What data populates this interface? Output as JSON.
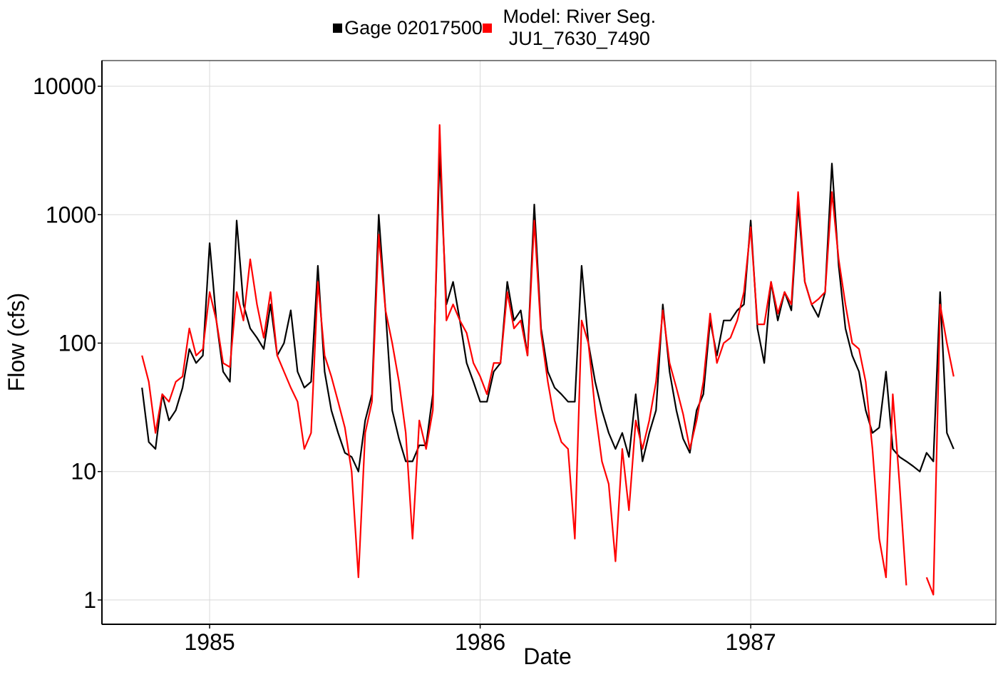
{
  "chart_data": {
    "type": "line",
    "xlabel": "Date",
    "ylabel": "Flow (cfs)",
    "yscale": "log",
    "grid": true,
    "legend": "top",
    "xlim": [
      1984.602,
      1987.906
    ],
    "xticks": [
      1985,
      1986,
      1987
    ],
    "ylim": [
      0.647,
      15849
    ],
    "yticks": [
      1,
      10,
      100,
      1000,
      10000
    ],
    "x": [
      1984.75,
      1984.775,
      1984.8,
      1984.825,
      1984.85,
      1984.875,
      1984.9,
      1984.925,
      1984.95,
      1984.975,
      1985,
      1985.025,
      1985.05,
      1985.075,
      1985.1,
      1985.125,
      1985.15,
      1985.175,
      1985.2,
      1985.225,
      1985.25,
      1985.275,
      1985.3,
      1985.325,
      1985.35,
      1985.375,
      1985.4,
      1985.425,
      1985.45,
      1985.475,
      1985.5,
      1985.525,
      1985.55,
      1985.575,
      1985.6,
      1985.625,
      1985.65,
      1985.675,
      1985.7,
      1985.725,
      1985.75,
      1985.775,
      1985.8,
      1985.825,
      1985.85,
      1985.875,
      1985.9,
      1985.925,
      1985.95,
      1985.975,
      1986,
      1986.025,
      1986.05,
      1986.075,
      1986.1,
      1986.125,
      1986.15,
      1986.175,
      1986.2,
      1986.225,
      1986.25,
      1986.275,
      1986.3,
      1986.325,
      1986.35,
      1986.375,
      1986.4,
      1986.425,
      1986.45,
      1986.475,
      1986.5,
      1986.525,
      1986.55,
      1986.575,
      1986.6,
      1986.625,
      1986.65,
      1986.675,
      1986.7,
      1986.725,
      1986.75,
      1986.775,
      1986.8,
      1986.825,
      1986.85,
      1986.875,
      1986.9,
      1986.925,
      1986.95,
      1986.975,
      1987,
      1987.025,
      1987.05,
      1987.075,
      1987.1,
      1987.125,
      1987.15,
      1987.175,
      1987.2,
      1987.225,
      1987.25,
      1987.275,
      1987.3,
      1987.325,
      1987.35,
      1987.375,
      1987.4,
      1987.425,
      1987.45,
      1987.475,
      1987.5,
      1987.525,
      1987.55,
      1987.575,
      1987.6,
      1987.625,
      1987.65,
      1987.675,
      1987.7,
      1987.725,
      1987.75
    ],
    "series": [
      {
        "name": "Gage 02017500",
        "color": "#000000",
        "values": [
          45,
          17,
          15,
          40,
          25,
          30,
          45,
          90,
          70,
          80,
          600,
          150,
          60,
          50,
          900,
          200,
          130,
          110,
          90,
          200,
          80,
          100,
          180,
          60,
          45,
          50,
          400,
          60,
          30,
          20,
          14,
          13,
          10,
          25,
          40,
          1000,
          180,
          30,
          18,
          12,
          12,
          16,
          16,
          40,
          3000,
          200,
          300,
          150,
          70,
          50,
          35,
          35,
          60,
          70,
          300,
          150,
          180,
          80,
          1200,
          130,
          60,
          45,
          40,
          35,
          35,
          400,
          100,
          50,
          30,
          20,
          15,
          20,
          13,
          40,
          12,
          20,
          30,
          200,
          60,
          30,
          18,
          14,
          30,
          40,
          150,
          80,
          150,
          150,
          180,
          200,
          900,
          130,
          70,
          300,
          150,
          250,
          180,
          1200,
          300,
          200,
          160,
          250,
          2500,
          400,
          130,
          80,
          60,
          30,
          20,
          22,
          60,
          15,
          13,
          12,
          11,
          10,
          14,
          12,
          250,
          20,
          15
        ]
      },
      {
        "name": "Model: River Seg. JU1_7630_7490",
        "color": "#ff0000",
        "values": [
          80,
          50,
          20,
          40,
          35,
          50,
          55,
          130,
          80,
          90,
          250,
          150,
          70,
          65,
          250,
          150,
          450,
          200,
          110,
          250,
          80,
          60,
          45,
          35,
          15,
          20,
          300,
          80,
          55,
          35,
          22,
          10,
          1.5,
          20,
          35,
          700,
          180,
          100,
          50,
          20,
          3,
          25,
          15,
          30,
          5000,
          150,
          200,
          150,
          120,
          70,
          55,
          40,
          70,
          70,
          250,
          130,
          150,
          80,
          900,
          120,
          50,
          25,
          17,
          15,
          3,
          150,
          100,
          30,
          12,
          8,
          2,
          15,
          5,
          25,
          15,
          25,
          50,
          180,
          70,
          45,
          28,
          15,
          25,
          50,
          170,
          70,
          100,
          110,
          150,
          250,
          800,
          140,
          140,
          300,
          170,
          250,
          200,
          1500,
          300,
          200,
          220,
          250,
          1500,
          450,
          200,
          100,
          90,
          50,
          15,
          3,
          1.5,
          40,
          8,
          1.3,
          null,
          null,
          1.5,
          1.1,
          200,
          100,
          55
        ]
      }
    ]
  }
}
